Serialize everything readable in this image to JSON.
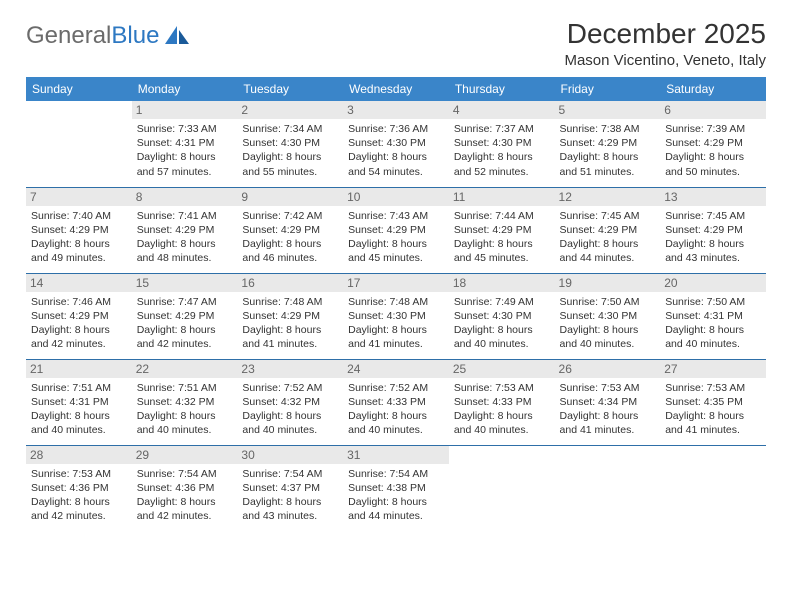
{
  "logo": {
    "text1": "General",
    "text2": "Blue"
  },
  "title": "December 2025",
  "location": "Mason Vicentino, Veneto, Italy",
  "colors": {
    "header_bg": "#3a85c9",
    "header_text": "#ffffff",
    "daynum_bg": "#e9e9e9",
    "daynum_text": "#666666",
    "text": "#333333",
    "rule": "#2e6fa8",
    "logo_gray": "#6b6b6b",
    "logo_blue": "#2d78c2"
  },
  "weekdays": [
    "Sunday",
    "Monday",
    "Tuesday",
    "Wednesday",
    "Thursday",
    "Friday",
    "Saturday"
  ],
  "weeks": [
    [
      null,
      {
        "n": "1",
        "sr": "7:33 AM",
        "ss": "4:31 PM",
        "dl": "8 hours and 57 minutes."
      },
      {
        "n": "2",
        "sr": "7:34 AM",
        "ss": "4:30 PM",
        "dl": "8 hours and 55 minutes."
      },
      {
        "n": "3",
        "sr": "7:36 AM",
        "ss": "4:30 PM",
        "dl": "8 hours and 54 minutes."
      },
      {
        "n": "4",
        "sr": "7:37 AM",
        "ss": "4:30 PM",
        "dl": "8 hours and 52 minutes."
      },
      {
        "n": "5",
        "sr": "7:38 AM",
        "ss": "4:29 PM",
        "dl": "8 hours and 51 minutes."
      },
      {
        "n": "6",
        "sr": "7:39 AM",
        "ss": "4:29 PM",
        "dl": "8 hours and 50 minutes."
      }
    ],
    [
      {
        "n": "7",
        "sr": "7:40 AM",
        "ss": "4:29 PM",
        "dl": "8 hours and 49 minutes."
      },
      {
        "n": "8",
        "sr": "7:41 AM",
        "ss": "4:29 PM",
        "dl": "8 hours and 48 minutes."
      },
      {
        "n": "9",
        "sr": "7:42 AM",
        "ss": "4:29 PM",
        "dl": "8 hours and 46 minutes."
      },
      {
        "n": "10",
        "sr": "7:43 AM",
        "ss": "4:29 PM",
        "dl": "8 hours and 45 minutes."
      },
      {
        "n": "11",
        "sr": "7:44 AM",
        "ss": "4:29 PM",
        "dl": "8 hours and 45 minutes."
      },
      {
        "n": "12",
        "sr": "7:45 AM",
        "ss": "4:29 PM",
        "dl": "8 hours and 44 minutes."
      },
      {
        "n": "13",
        "sr": "7:45 AM",
        "ss": "4:29 PM",
        "dl": "8 hours and 43 minutes."
      }
    ],
    [
      {
        "n": "14",
        "sr": "7:46 AM",
        "ss": "4:29 PM",
        "dl": "8 hours and 42 minutes."
      },
      {
        "n": "15",
        "sr": "7:47 AM",
        "ss": "4:29 PM",
        "dl": "8 hours and 42 minutes."
      },
      {
        "n": "16",
        "sr": "7:48 AM",
        "ss": "4:29 PM",
        "dl": "8 hours and 41 minutes."
      },
      {
        "n": "17",
        "sr": "7:48 AM",
        "ss": "4:30 PM",
        "dl": "8 hours and 41 minutes."
      },
      {
        "n": "18",
        "sr": "7:49 AM",
        "ss": "4:30 PM",
        "dl": "8 hours and 40 minutes."
      },
      {
        "n": "19",
        "sr": "7:50 AM",
        "ss": "4:30 PM",
        "dl": "8 hours and 40 minutes."
      },
      {
        "n": "20",
        "sr": "7:50 AM",
        "ss": "4:31 PM",
        "dl": "8 hours and 40 minutes."
      }
    ],
    [
      {
        "n": "21",
        "sr": "7:51 AM",
        "ss": "4:31 PM",
        "dl": "8 hours and 40 minutes."
      },
      {
        "n": "22",
        "sr": "7:51 AM",
        "ss": "4:32 PM",
        "dl": "8 hours and 40 minutes."
      },
      {
        "n": "23",
        "sr": "7:52 AM",
        "ss": "4:32 PM",
        "dl": "8 hours and 40 minutes."
      },
      {
        "n": "24",
        "sr": "7:52 AM",
        "ss": "4:33 PM",
        "dl": "8 hours and 40 minutes."
      },
      {
        "n": "25",
        "sr": "7:53 AM",
        "ss": "4:33 PM",
        "dl": "8 hours and 40 minutes."
      },
      {
        "n": "26",
        "sr": "7:53 AM",
        "ss": "4:34 PM",
        "dl": "8 hours and 41 minutes."
      },
      {
        "n": "27",
        "sr": "7:53 AM",
        "ss": "4:35 PM",
        "dl": "8 hours and 41 minutes."
      }
    ],
    [
      {
        "n": "28",
        "sr": "7:53 AM",
        "ss": "4:36 PM",
        "dl": "8 hours and 42 minutes."
      },
      {
        "n": "29",
        "sr": "7:54 AM",
        "ss": "4:36 PM",
        "dl": "8 hours and 42 minutes."
      },
      {
        "n": "30",
        "sr": "7:54 AM",
        "ss": "4:37 PM",
        "dl": "8 hours and 43 minutes."
      },
      {
        "n": "31",
        "sr": "7:54 AM",
        "ss": "4:38 PM",
        "dl": "8 hours and 44 minutes."
      },
      null,
      null,
      null
    ]
  ],
  "labels": {
    "sunrise": "Sunrise:",
    "sunset": "Sunset:",
    "daylight": "Daylight:"
  }
}
